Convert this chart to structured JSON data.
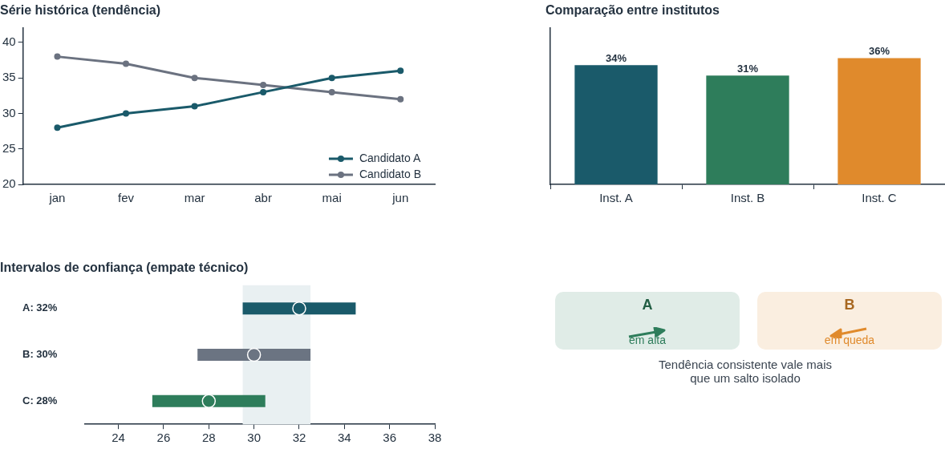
{
  "chart_data": [
    {
      "type": "line",
      "title": "Série histórica (tendência)",
      "categories": [
        "jan",
        "fev",
        "mar",
        "abr",
        "mai",
        "jun"
      ],
      "series": [
        {
          "name": "Candidato A",
          "color": "#1a5a6a",
          "values": [
            28,
            30,
            31,
            33,
            35,
            36
          ]
        },
        {
          "name": "Candidato B",
          "color": "#6b7280",
          "values": [
            38,
            37,
            35,
            34,
            33,
            32
          ]
        }
      ],
      "ylim": [
        20,
        42
      ],
      "yticks": [
        20,
        25,
        30,
        35,
        40
      ],
      "legend": "bottom right",
      "marker": "circle",
      "line_style": "solid"
    },
    {
      "type": "bar",
      "title": "Comparação entre institutos",
      "categories": [
        "Inst. A",
        "Inst. B",
        "Inst. C"
      ],
      "values": [
        34,
        31,
        36
      ],
      "colors": [
        "#1a5a6a",
        "#2e7d5b",
        "#e08a2c"
      ],
      "value_labels": [
        "34%",
        "31%",
        "36%"
      ],
      "ylim": [
        0,
        44.5
      ],
      "tick_labels": "x"
    },
    {
      "type": "bar",
      "title": "Intervalos de confiança (empate técnico)",
      "orientation": "horizontal",
      "categories": [
        "A: 32%",
        "B: 30%",
        "C: 28%"
      ],
      "series": [
        {
          "type": "bar",
          "colors": [
            "#1a5a6a",
            "#6b7482",
            "#2e7d5b"
          ],
          "base": [
            29.5,
            27.5,
            25.5
          ],
          "values": [
            5,
            5,
            5
          ]
        },
        {
          "type": "scatter",
          "colors": [
            "#1a5a6a",
            "#6b7482",
            "#2e7d5b"
          ],
          "values": [
            32,
            30,
            28
          ]
        }
      ],
      "xlim": [
        22.5,
        38
      ],
      "xticks": [
        24,
        26,
        28,
        30,
        32,
        34,
        36,
        38
      ],
      "bands": [
        {
          "axis": "x",
          "from": 29.5,
          "to": 32.5,
          "color": "#e9f0f2"
        }
      ],
      "marker": "circle"
    },
    {
      "type": "other",
      "categories": [
        "A",
        "B"
      ],
      "colors": [
        "#2e7d5b",
        "#e08a2c"
      ],
      "annotations": [
        "em alta",
        "em queda",
        "Tendência consistente vale mais que um salto isolado"
      ]
    }
  ]
}
